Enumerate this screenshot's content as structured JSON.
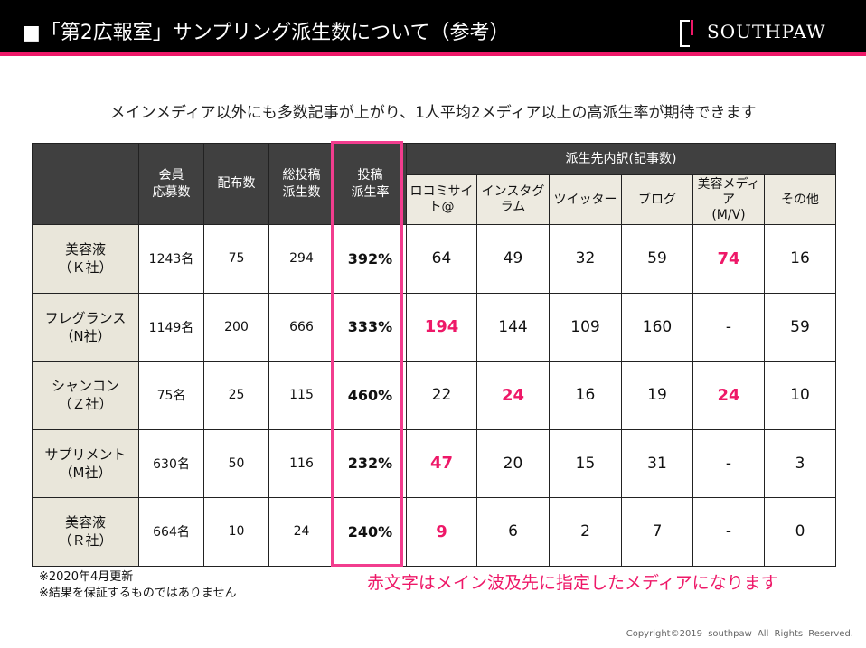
{
  "header": {
    "title": "■「第2広報室」サンプリング派生数について（参考）",
    "logo": "SOUTHPAW"
  },
  "subtitle": "メインメディア以外にも多数記事が上がり、1人平均2メディア以上の高派生率が期待できます",
  "table": {
    "columns": [
      "会員\n応募数",
      "配布数",
      "総投稿\n派生数",
      "投稿\n派生率"
    ],
    "group_header": "派生先内訳(記事数)",
    "sub_columns": [
      "ロコミサイト@",
      "インスタグラム",
      "ツイッター",
      "ブログ",
      "美容メディア\n(M/V)",
      "その他"
    ],
    "rows": [
      {
        "label": "美容液\n（Ｋ社）",
        "cells": [
          "1243名",
          "75",
          "294",
          "392%"
        ],
        "breakdown": [
          "64",
          "49",
          "32",
          "59",
          "74",
          "16"
        ],
        "red": [
          4
        ]
      },
      {
        "label": "フレグランス\n（N社）",
        "cells": [
          "1149名",
          "200",
          "666",
          "333%"
        ],
        "breakdown": [
          "194",
          "144",
          "109",
          "160",
          "-",
          "59"
        ],
        "red": [
          0
        ]
      },
      {
        "label": "シャンコン\n（Ｚ社）",
        "cells": [
          "75名",
          "25",
          "115",
          "460%"
        ],
        "breakdown": [
          "22",
          "24",
          "16",
          "19",
          "24",
          "10"
        ],
        "red": [
          1,
          4
        ]
      },
      {
        "label": "サプリメント\n（M社）",
        "cells": [
          "630名",
          "50",
          "116",
          "232%"
        ],
        "breakdown": [
          "47",
          "20",
          "15",
          "31",
          "-",
          "3"
        ],
        "red": [
          0
        ]
      },
      {
        "label": "美容液\n（Ｒ社）",
        "cells": [
          "664名",
          "10",
          "24",
          "240%"
        ],
        "breakdown": [
          "9",
          "6",
          "2",
          "7",
          "-",
          "0"
        ],
        "red": [
          0
        ]
      }
    ]
  },
  "notes": [
    "※2020年4月更新",
    "※結果を保証するものではありません"
  ],
  "red_note": "赤文字はメイン波及先に指定したメディアになります",
  "copyright": "Copyright©2019 southpaw All Rights Reserved.",
  "colors": {
    "accent": "#ee1868",
    "header_bg": "#404040",
    "label_bg": "#e9e6da"
  }
}
